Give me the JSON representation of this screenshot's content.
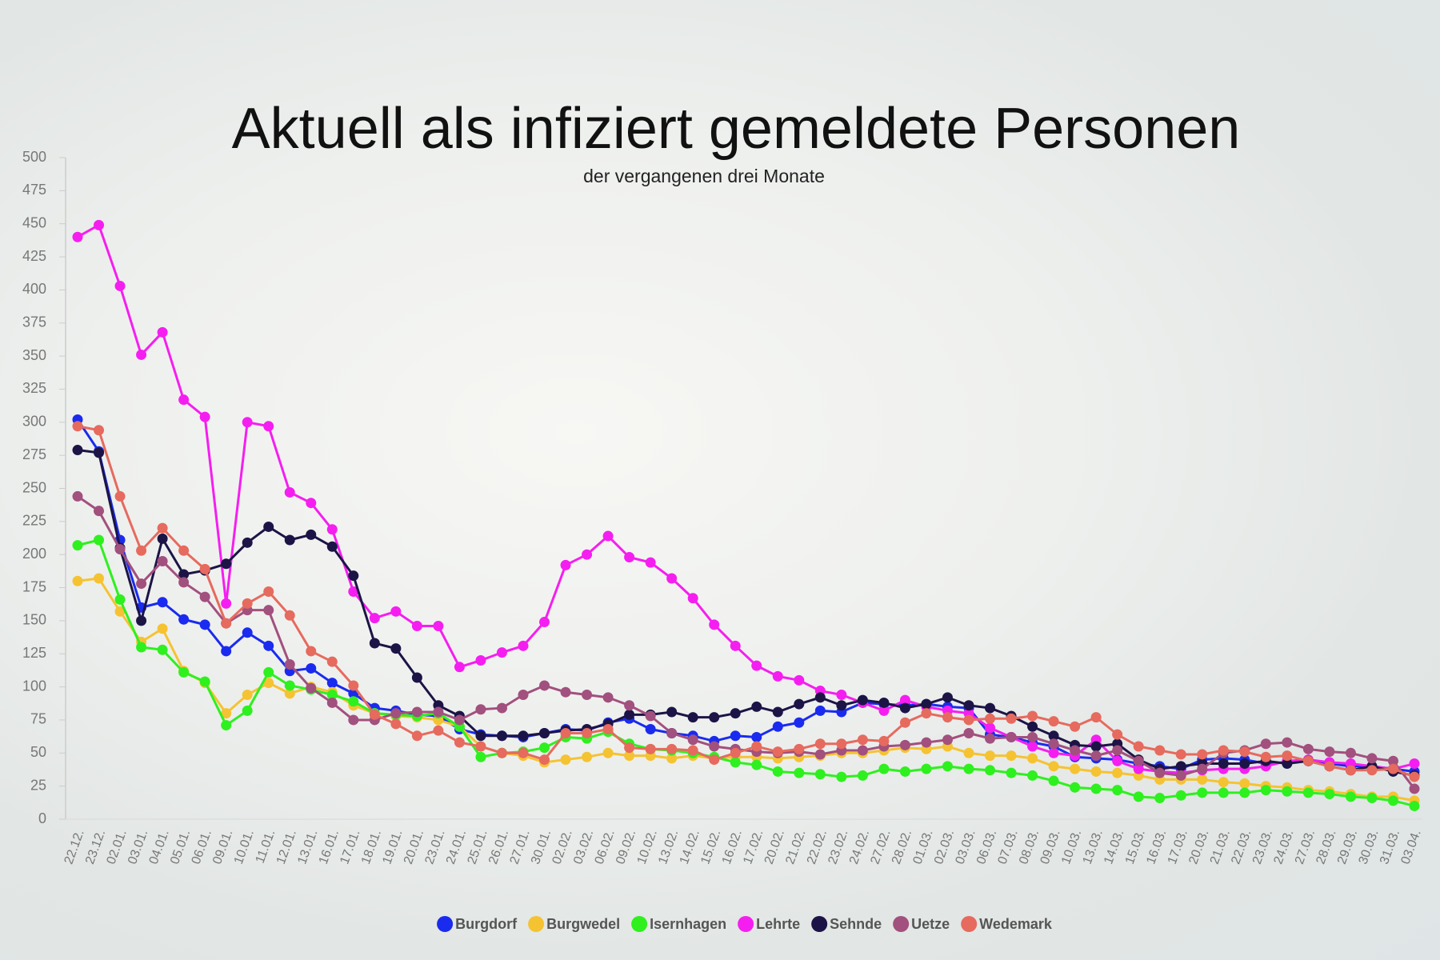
{
  "chart_data": {
    "type": "line",
    "title": "Aktuell als infiziert gemeldete Personen",
    "subtitle": "der vergangenen drei Monate",
    "categories": [
      "22.12.",
      "23.12.",
      "02.01.",
      "03.01.",
      "04.01.",
      "05.01.",
      "06.01.",
      "09.01.",
      "10.01.",
      "11.01.",
      "12.01.",
      "13.01.",
      "16.01.",
      "17.01.",
      "18.01.",
      "19.01.",
      "20.01.",
      "23.01.",
      "24.01.",
      "25.01.",
      "26.01.",
      "27.01.",
      "30.01.",
      "02.02.",
      "03.02.",
      "06.02.",
      "09.02.",
      "10.02.",
      "13.02.",
      "14.02.",
      "15.02.",
      "16.02.",
      "17.02.",
      "20.02.",
      "21.02.",
      "22.02.",
      "23.02.",
      "24.02.",
      "27.02.",
      "28.02.",
      "01.03.",
      "02.03.",
      "03.03.",
      "06.03.",
      "07.03.",
      "08.03.",
      "09.03.",
      "10.03.",
      "13.03.",
      "14.03.",
      "15.03.",
      "16.03.",
      "17.03.",
      "20.03.",
      "21.03.",
      "22.03.",
      "23.03.",
      "24.03.",
      "27.03.",
      "28.03.",
      "29.03.",
      "30.03.",
      "31.03.",
      "03.04."
    ],
    "series": [
      {
        "name": "Burgdorf",
        "color": "#1a2bef",
        "values": [
          302,
          278,
          211,
          160,
          164,
          151,
          147,
          127,
          141,
          131,
          112,
          114,
          103,
          95,
          84,
          82,
          79,
          78,
          68,
          64,
          63,
          62,
          65,
          68,
          67,
          73,
          76,
          68,
          65,
          63,
          59,
          63,
          62,
          70,
          73,
          82,
          81,
          88,
          87,
          86,
          87,
          85,
          84,
          64,
          62,
          58,
          55,
          47,
          46,
          45,
          42,
          40,
          38,
          45,
          46,
          45,
          42,
          43,
          44,
          42,
          40,
          40,
          38,
          36
        ]
      },
      {
        "name": "Burgwedel",
        "color": "#f5c332",
        "values": [
          180,
          182,
          157,
          134,
          144,
          112,
          103,
          80,
          94,
          103,
          95,
          100,
          96,
          86,
          80,
          78,
          77,
          75,
          70,
          55,
          50,
          48,
          43,
          45,
          47,
          50,
          48,
          48,
          46,
          48,
          46,
          47,
          47,
          46,
          47,
          48,
          50,
          50,
          52,
          54,
          53,
          55,
          50,
          48,
          48,
          46,
          40,
          38,
          36,
          35,
          33,
          30,
          30,
          30,
          28,
          27,
          25,
          24,
          22,
          21,
          19,
          17,
          17,
          14
        ]
      },
      {
        "name": "Isernhagen",
        "color": "#2ef01f",
        "values": [
          207,
          211,
          166,
          130,
          128,
          111,
          104,
          71,
          82,
          111,
          101,
          98,
          94,
          89,
          80,
          79,
          78,
          80,
          70,
          47,
          50,
          51,
          54,
          62,
          61,
          66,
          57,
          53,
          52,
          50,
          47,
          43,
          41,
          36,
          35,
          34,
          32,
          33,
          38,
          36,
          38,
          40,
          38,
          37,
          35,
          33,
          29,
          24,
          23,
          22,
          17,
          16,
          18,
          20,
          20,
          20,
          22,
          21,
          20,
          19,
          17,
          16,
          14,
          10
        ]
      },
      {
        "name": "Lehrte",
        "color": "#f51ef0",
        "values": [
          440,
          449,
          403,
          351,
          368,
          317,
          304,
          163,
          300,
          297,
          247,
          239,
          219,
          172,
          152,
          157,
          146,
          146,
          115,
          120,
          126,
          131,
          149,
          192,
          200,
          214,
          198,
          194,
          182,
          167,
          147,
          131,
          116,
          108,
          105,
          97,
          94,
          88,
          82,
          90,
          85,
          82,
          80,
          69,
          62,
          55,
          50,
          48,
          60,
          44,
          38,
          36,
          35,
          37,
          38,
          38,
          40,
          44,
          45,
          43,
          42,
          40,
          38,
          42
        ]
      },
      {
        "name": "Sehnde",
        "color": "#1c1446",
        "values": [
          279,
          277,
          205,
          150,
          212,
          185,
          188,
          193,
          209,
          221,
          211,
          215,
          206,
          184,
          133,
          129,
          107,
          86,
          78,
          63,
          63,
          63,
          65,
          67,
          68,
          72,
          79,
          79,
          81,
          77,
          77,
          80,
          85,
          81,
          87,
          92,
          86,
          90,
          88,
          84,
          87,
          92,
          86,
          84,
          78,
          70,
          63,
          56,
          55,
          57,
          45,
          38,
          40,
          42,
          42,
          42,
          44,
          42,
          44,
          40,
          37,
          40,
          36,
          33
        ]
      },
      {
        "name": "Uetze",
        "color": "#a2507e",
        "values": [
          244,
          233,
          204,
          178,
          195,
          179,
          168,
          148,
          158,
          158,
          117,
          99,
          88,
          75,
          75,
          80,
          81,
          81,
          75,
          83,
          84,
          94,
          101,
          96,
          94,
          92,
          86,
          78,
          65,
          60,
          55,
          53,
          51,
          50,
          51,
          49,
          52,
          52,
          55,
          56,
          58,
          60,
          65,
          61,
          62,
          62,
          57,
          52,
          48,
          52,
          44,
          35,
          33,
          38,
          50,
          52,
          57,
          58,
          53,
          51,
          50,
          46,
          44,
          23
        ]
      },
      {
        "name": "Wedemark",
        "color": "#e66a5e",
        "values": [
          297,
          294,
          244,
          203,
          220,
          203,
          189,
          148,
          163,
          172,
          154,
          127,
          119,
          101,
          79,
          72,
          63,
          67,
          58,
          55,
          50,
          50,
          45,
          65,
          65,
          68,
          54,
          53,
          53,
          52,
          45,
          50,
          55,
          51,
          53,
          57,
          57,
          60,
          59,
          73,
          80,
          77,
          75,
          76,
          76,
          78,
          74,
          70,
          77,
          64,
          55,
          52,
          49,
          49,
          52,
          51,
          47,
          48,
          44,
          40,
          37,
          37,
          38,
          32
        ]
      }
    ],
    "ylim": [
      0,
      500
    ],
    "yticks": [
      0,
      25,
      50,
      75,
      100,
      125,
      150,
      175,
      200,
      225,
      250,
      275,
      300,
      325,
      350,
      375,
      400,
      425,
      450,
      475,
      500
    ],
    "grid": false
  }
}
